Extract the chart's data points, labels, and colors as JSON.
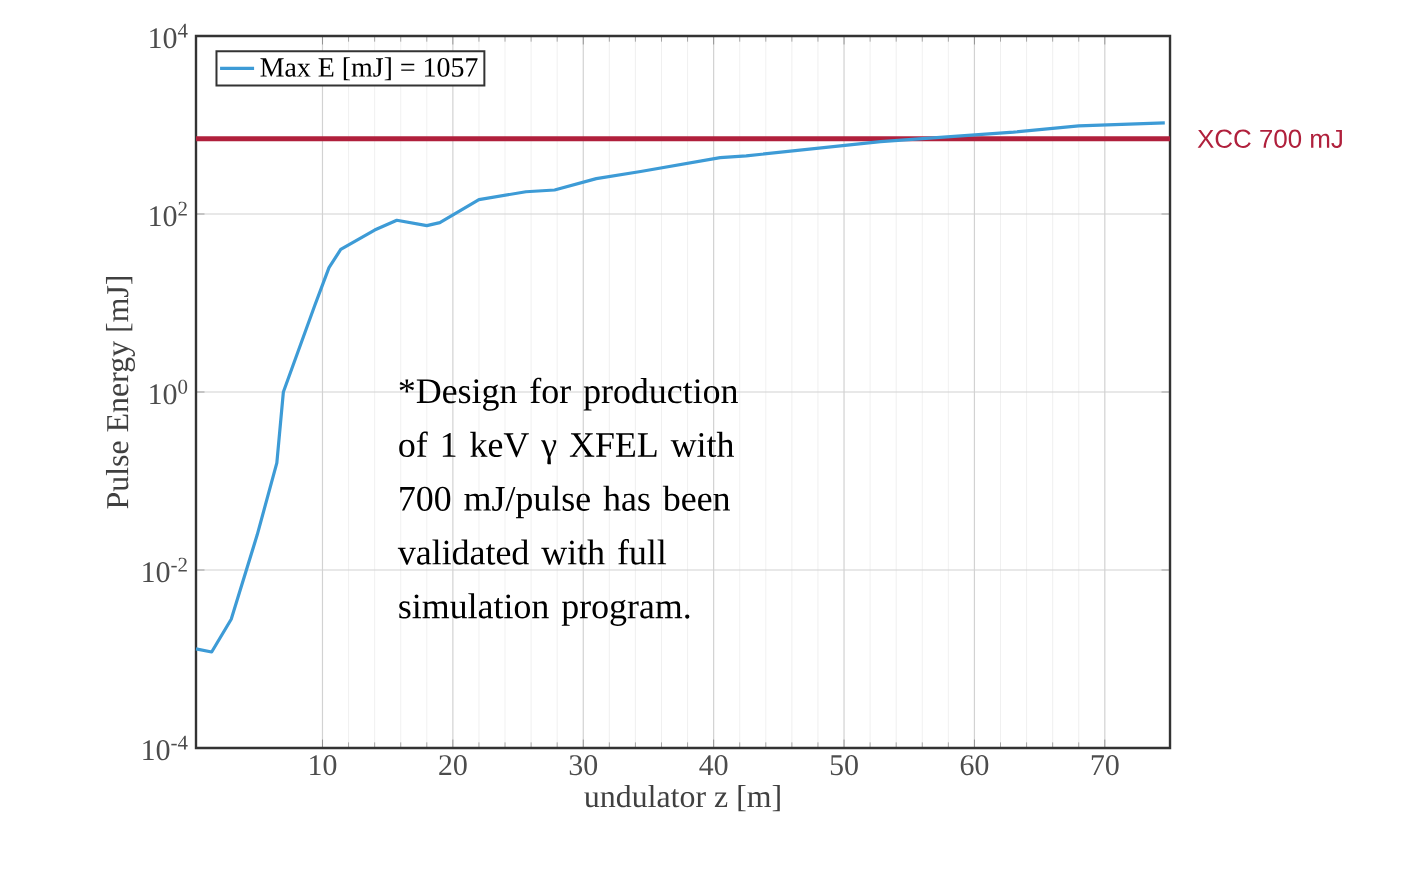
{
  "chart_data": {
    "type": "line",
    "xlabel": "undulator z [m]",
    "ylabel": "Pulse Energy [mJ]",
    "log": "y",
    "xlim": [
      0.3,
      75
    ],
    "xticks": [
      10,
      20,
      30,
      40,
      50,
      60,
      70
    ],
    "ylim": [
      0.0001,
      10000
    ],
    "yticks": [
      {
        "value": 0.0001,
        "label": "10$^{-4}$"
      },
      {
        "value": 0.01,
        "label": "10$^{-2}$"
      },
      {
        "value": 1,
        "label": "10$^{0}$"
      },
      {
        "value": 100,
        "label": "10$^{2}$"
      },
      {
        "value": 10000,
        "label": "10$^{4}$"
      }
    ],
    "grid": true,
    "legend": "top left",
    "series": [
      {
        "name": "Max E [mJ] = 1057",
        "color": "#3d9bd6",
        "x": [
          0.3,
          1.5,
          3,
          5,
          6.5,
          7,
          9.4,
          10.5,
          11.4,
          14,
          15.7,
          18,
          19,
          22,
          25.6,
          27.8,
          31,
          34.4,
          40.5,
          42.5,
          52.8,
          63,
          68,
          74.6
        ],
        "values": [
          0.0013,
          0.0012,
          0.0028,
          0.025,
          0.16,
          1,
          9.3,
          25,
          40,
          66,
          85,
          74,
          80,
          145,
          178,
          186,
          250,
          300,
          430,
          450,
          650,
          830,
          980,
          1057
        ]
      }
    ],
    "ref_lines": [
      {
        "axis": "y",
        "value": 700,
        "label": "XCC 700 mJ",
        "color": "#b0203c"
      }
    ],
    "annotations": [
      "*Design for production of 1 keV γ XFEL with 700 mJ/pulse has been validated with full simulation program."
    ]
  }
}
